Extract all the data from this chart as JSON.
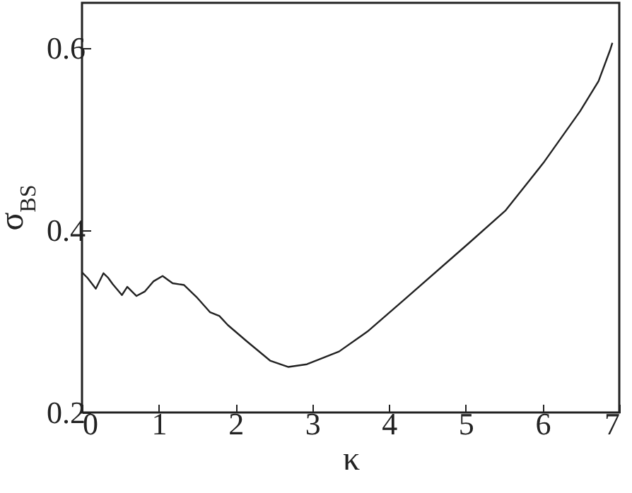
{
  "chart_data": {
    "type": "line",
    "xlabel": "κ",
    "ylabel": "σ$_{BS}$",
    "x": [
      0,
      0.07,
      0.18,
      0.28,
      0.34,
      0.4,
      0.52,
      0.59,
      0.71,
      0.82,
      0.93,
      1.05,
      1.18,
      1.33,
      1.49,
      1.67,
      1.79,
      1.9,
      2.15,
      2.45,
      2.69,
      2.93,
      3.35,
      3.72,
      4.2,
      5.04,
      5.52,
      6.01,
      6.49,
      6.73,
      6.88,
      6.91
    ],
    "series": [
      {
        "color": "#222222",
        "values": [
          0.354,
          0.348,
          0.336,
          0.353,
          0.348,
          0.341,
          0.329,
          0.338,
          0.328,
          0.333,
          0.344,
          0.35,
          0.342,
          0.34,
          0.327,
          0.31,
          0.306,
          0.296,
          0.278,
          0.257,
          0.25,
          0.253,
          0.267,
          0.289,
          0.324,
          0.386,
          0.422,
          0.474,
          0.531,
          0.564,
          0.598,
          0.606
        ]
      }
    ],
    "xlim": [
      0,
      7
    ],
    "xticks": [
      0,
      1,
      2,
      3,
      4,
      5,
      6,
      7
    ],
    "ylim": [
      0.2,
      0.65
    ],
    "yticks": [
      0.2,
      0.4,
      0.6
    ],
    "grid": false,
    "marker": "none",
    "line_style": "solid"
  }
}
